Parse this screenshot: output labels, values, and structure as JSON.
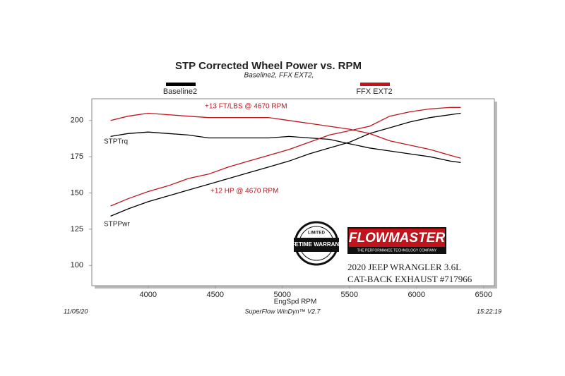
{
  "chart_data": {
    "type": "line",
    "title": "STP Corrected Wheel Power vs. RPM",
    "subtitle": "Baseline2, FFX EXT2,",
    "x_label": "EngSpd  RPM",
    "x": [
      3720,
      3850,
      4000,
      4150,
      4300,
      4450,
      4600,
      4750,
      4900,
      5050,
      5200,
      5350,
      5500,
      5650,
      5800,
      5950,
      6100,
      6250,
      6330
    ],
    "series": [
      {
        "name": "Baseline2",
        "color": "#000000",
        "torque": [
          189,
          191,
          192,
          191,
          190,
          188,
          188,
          188,
          188,
          189,
          188,
          187,
          184,
          181,
          179,
          177,
          175,
          172,
          171
        ],
        "power": [
          134,
          139,
          144,
          148,
          152,
          156,
          160,
          164,
          168,
          172,
          177,
          181,
          185,
          191,
          195,
          199,
          202,
          204,
          205
        ]
      },
      {
        "name": "FFX EXT2",
        "color": "#c0141c",
        "torque": [
          200,
          203,
          205,
          204,
          203,
          202,
          202,
          202,
          202,
          200,
          198,
          196,
          194,
          191,
          186,
          183,
          180,
          176,
          174
        ],
        "power": [
          141,
          146,
          151,
          155,
          160,
          163,
          168,
          172,
          176,
          180,
          185,
          190,
          193,
          196,
          203,
          206,
          208,
          209,
          209
        ]
      }
    ],
    "curve_labels": {
      "torque": "STPTrq",
      "power": "STPPwr"
    },
    "annotations": [
      "+13 FT/LBS @ 4670 RPM",
      "+12 HP @ 4670 RPM"
    ],
    "xlim": [
      3580,
      6580
    ],
    "ylim": [
      86,
      215
    ],
    "xticks": [
      4000,
      4500,
      5000,
      5500,
      6000,
      6500
    ],
    "yticks": [
      100,
      125,
      150,
      175,
      200
    ],
    "grid": false,
    "footer": {
      "date": "11/05/20",
      "software": "SuperFlow WinDyn™ V2.7",
      "time": "15:22:19"
    },
    "branding": {
      "logo": "FLOWMASTER",
      "tagline": "THE PERFORMANCE TECHNOLOGY COMPANY",
      "badge_top": "LIMITED",
      "badge_main": "LIFETIME WARRANTY",
      "vehicle": "2020 JEEP WRANGLER 3.6L",
      "product": "CAT-BACK EXHAUST #717966"
    }
  }
}
